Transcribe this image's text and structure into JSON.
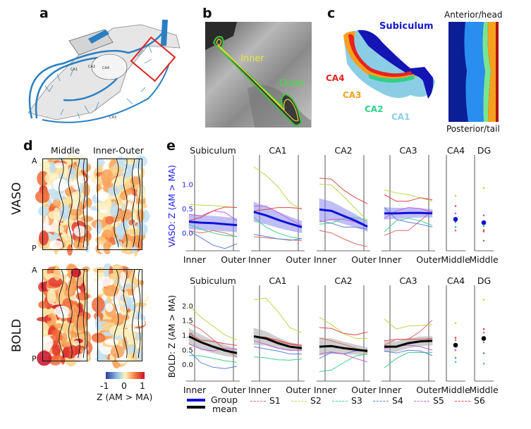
{
  "panels": {
    "a": {
      "letter": "a",
      "region_labels": [
        "CA1",
        "CA2",
        "CA3",
        "CA4"
      ]
    },
    "b": {
      "letter": "b",
      "inner_label": "Inner",
      "outer_label": "Outer"
    },
    "c": {
      "letter": "c",
      "subfield_labels": [
        {
          "text": "Subiculum",
          "color": "#1a1ac8"
        },
        {
          "text": "CA4",
          "color": "#e8221e"
        },
        {
          "text": "CA3",
          "color": "#f5a01e"
        },
        {
          "text": "CA2",
          "color": "#2fd08a"
        },
        {
          "text": "CA1",
          "color": "#8ccde6"
        }
      ],
      "flatmap_top": "Anterior/head",
      "flatmap_bottom": "Posterior/tail"
    },
    "d": {
      "letter": "d",
      "col_headers": [
        "Middle",
        "Inner-Outer"
      ],
      "row_labels": [
        "VASO",
        "BOLD"
      ],
      "axis_top": "A",
      "axis_bottom": "P",
      "colorbar": {
        "ticks": [
          "-1",
          "0",
          "1"
        ],
        "label": "Z (AM > MA)",
        "range": [
          -1,
          1
        ]
      }
    },
    "e": {
      "letter": "e",
      "legend": {
        "group_mean": "Group\nmean",
        "group_label_1": "Group",
        "group_label_2": "mean",
        "subjects": [
          {
            "name": "S1",
            "color": "#d96b6b"
          },
          {
            "name": "S2",
            "color": "#b8d64a"
          },
          {
            "name": "S3",
            "color": "#3fcf8a"
          },
          {
            "name": "S4",
            "color": "#5b7fd6"
          },
          {
            "name": "S5",
            "color": "#c25fd6"
          },
          {
            "name": "S6",
            "color": "#e0454a"
          }
        ]
      }
    }
  },
  "chart_data": [
    {
      "type": "line",
      "title": "VASO layer profiles",
      "ylabel": "VASO: Z (AM > MA)",
      "ylabel_color": "#1a1ae6",
      "mean_color": "#1010d8",
      "band_color": "#8c8cf0",
      "ylim": [
        -0.35,
        1.45
      ],
      "yticks": [
        "0.0",
        "0.5",
        "1.0"
      ],
      "ytick_values": [
        0.0,
        0.5,
        1.0
      ],
      "xlabels": [
        "Inner",
        "Outer"
      ],
      "subplots": [
        {
          "title": "Subiculum",
          "kind": "profile",
          "mean": [
            0.23,
            0.21,
            0.2,
            0.18,
            0.16
          ],
          "band": [
            0.15,
            0.14
          ],
          "subjects": {
            "S1": [
              0.05,
              0.0,
              0.05,
              0.0,
              -0.08
            ],
            "S2": [
              0.58,
              0.57,
              0.56,
              0.54,
              0.52
            ],
            "S3": [
              0.17,
              0.08,
              0.0,
              -0.05,
              -0.07
            ],
            "S4": [
              0.05,
              -0.1,
              -0.25,
              -0.32,
              -0.22
            ],
            "S5": [
              0.38,
              0.35,
              0.45,
              0.42,
              0.25
            ],
            "S6": [
              0.25,
              0.32,
              0.45,
              0.53,
              0.52
            ]
          }
        },
        {
          "title": "CA1",
          "kind": "profile",
          "mean": [
            0.43,
            0.36,
            0.27,
            0.19,
            0.12
          ],
          "band": [
            0.2,
            0.12
          ],
          "subjects": {
            "S1": [
              -0.08,
              -0.1,
              -0.12,
              -0.14,
              -0.16
            ],
            "S2": [
              1.35,
              1.18,
              0.95,
              0.62,
              0.48
            ],
            "S3": [
              0.32,
              0.12,
              0.0,
              -0.08,
              -0.12
            ],
            "S4": [
              -0.03,
              -0.07,
              -0.12,
              -0.15,
              -0.12
            ],
            "S5": [
              0.55,
              0.55,
              0.42,
              0.28,
              0.15
            ],
            "S6": [
              0.45,
              0.48,
              0.52,
              0.52,
              0.5
            ]
          }
        },
        {
          "title": "CA2",
          "kind": "profile",
          "mean": [
            0.48,
            0.45,
            0.35,
            0.25,
            0.13
          ],
          "band": [
            0.22,
            0.1
          ],
          "subjects": {
            "S1": [
              0.05,
              0.0,
              -0.12,
              -0.22,
              -0.28
            ],
            "S2": [
              1.0,
              0.98,
              0.75,
              0.5,
              0.25
            ],
            "S3": [
              0.18,
              0.2,
              0.3,
              0.32,
              0.25
            ],
            "S4": [
              0.25,
              0.2,
              0.12,
              0.12,
              0.08
            ],
            "S5": [
              0.22,
              0.28,
              0.28,
              0.22,
              0.12
            ],
            "S6": [
              1.12,
              1.1,
              0.88,
              0.72,
              0.6
            ]
          }
        },
        {
          "title": "CA3",
          "kind": "profile",
          "mean": [
            0.4,
            0.4,
            0.41,
            0.41,
            0.4
          ],
          "band": [
            0.12,
            0.08
          ],
          "subjects": {
            "S1": [
              -0.05,
              0.05,
              0.05,
              0.25,
              0.45
            ],
            "S2": [
              0.88,
              0.82,
              0.78,
              0.72,
              0.65
            ],
            "S3": [
              0.02,
              0.25,
              0.3,
              0.25,
              0.15
            ],
            "S4": [
              0.52,
              0.28,
              0.22,
              0.18,
              0.12
            ],
            "S5": [
              0.3,
              0.45,
              0.52,
              0.5,
              0.42
            ],
            "S6": [
              0.78,
              0.65,
              0.65,
              0.72,
              0.68
            ]
          }
        },
        {
          "title": "CA4",
          "kind": "point",
          "xlabel": "Middle",
          "mean": 0.28,
          "subjects": {
            "S1": 0.05,
            "S2": 0.76,
            "S3": 0.12,
            "S4": 0.22,
            "S5": 0.4,
            "S6": 0.55
          }
        },
        {
          "title": "DG",
          "kind": "point",
          "xlabel": "Middle",
          "mean": 0.21,
          "subjects": {
            "S1": 0.06,
            "S2": 0.92,
            "S3": 0.14,
            "S4": -0.16,
            "S5": 0.36,
            "S6": 0.03
          }
        }
      ]
    },
    {
      "type": "line",
      "title": "BOLD layer profiles",
      "ylabel": "BOLD: Z (AM > MA)",
      "ylabel_color": "#111111",
      "mean_color": "#000000",
      "band_color": "#a8a8a8",
      "ylim": [
        -0.55,
        2.45
      ],
      "yticks": [
        "0.0",
        "0.5",
        "1.0",
        "1.5",
        "2.0"
      ],
      "ytick_values": [
        0.0,
        0.5,
        1.0,
        1.5,
        2.0
      ],
      "xlabels": [
        "Inner",
        "Outer"
      ],
      "subplots": [
        {
          "title": "Subiculum",
          "kind": "profile",
          "mean": [
            0.95,
            0.75,
            0.6,
            0.47,
            0.38
          ],
          "band": [
            0.28,
            0.15
          ],
          "subjects": {
            "S1": [
              1.4,
              1.18,
              0.85,
              0.5,
              0.25
            ],
            "S2": [
              2.0,
              1.6,
              1.3,
              1.0,
              0.83
            ],
            "S3": [
              0.3,
              0.28,
              0.2,
              0.12,
              0.07
            ],
            "S4": [
              0.45,
              0.05,
              -0.1,
              -0.15,
              -0.07
            ],
            "S5": [
              0.7,
              0.52,
              0.45,
              0.55,
              0.5
            ],
            "S6": [
              1.05,
              0.82,
              0.78,
              0.7,
              0.64
            ]
          }
        },
        {
          "title": "CA1",
          "kind": "profile",
          "mean": [
            0.95,
            0.88,
            0.72,
            0.6,
            0.55
          ],
          "band": [
            0.28,
            0.1
          ],
          "subjects": {
            "S1": [
              0.95,
              0.9,
              0.78,
              0.68,
              0.62
            ],
            "S2": [
              2.2,
              2.25,
              1.8,
              1.25,
              1.08
            ],
            "S3": [
              0.25,
              0.22,
              0.15,
              0.14,
              0.18
            ],
            "S4": [
              0.6,
              0.52,
              0.45,
              0.35,
              0.35
            ],
            "S5": [
              0.8,
              0.68,
              0.55,
              0.48,
              0.48
            ],
            "S6": [
              0.95,
              0.92,
              0.82,
              0.7,
              0.65
            ]
          }
        },
        {
          "title": "CA2",
          "kind": "profile",
          "mean": [
            0.6,
            0.62,
            0.55,
            0.5,
            0.45
          ],
          "band": [
            0.3,
            0.12
          ],
          "subjects": {
            "S1": [
              0.9,
              0.8,
              0.68,
              0.55,
              0.4
            ],
            "S2": [
              1.6,
              1.35,
              1.05,
              0.88,
              0.88
            ],
            "S3": [
              -0.25,
              -0.2,
              0.05,
              0.28,
              0.35
            ],
            "S4": [
              0.2,
              0.4,
              0.35,
              0.45,
              0.5
            ],
            "S5": [
              0.35,
              0.42,
              0.35,
              0.2,
              0.08
            ],
            "S6": [
              1.25,
              1.22,
              1.05,
              1.0,
              1.1
            ]
          }
        },
        {
          "title": "CA3",
          "kind": "profile",
          "mean": [
            0.6,
            0.6,
            0.72,
            0.78,
            0.8
          ],
          "band": [
            0.18,
            0.15
          ],
          "subjects": {
            "S1": [
              0.65,
              0.85,
              0.85,
              1.12,
              1.5
            ],
            "S2": [
              1.55,
              1.2,
              1.3,
              1.32,
              1.35
            ],
            "S3": [
              -0.12,
              0.2,
              0.4,
              0.4,
              0.4
            ],
            "S4": [
              0.45,
              0.38,
              0.48,
              0.45,
              0.3
            ],
            "S5": [
              0.55,
              0.62,
              0.65,
              0.6,
              0.48
            ],
            "S6": [
              0.8,
              0.85,
              0.85,
              0.85,
              0.88
            ]
          }
        },
        {
          "title": "CA4",
          "kind": "point",
          "xlabel": "Middle",
          "mean": 0.65,
          "subjects": {
            "S1": 0.82,
            "S2": 1.4,
            "S3": 0.08,
            "S4": 0.22,
            "S5": 0.48,
            "S6": 0.9
          }
        },
        {
          "title": "DG",
          "kind": "point",
          "xlabel": "Middle",
          "mean": 0.88,
          "subjects": {
            "S1": 1.08,
            "S2": 2.2,
            "S3": 0.02,
            "S4": 0.38,
            "S5": 0.75,
            "S6": 1.2
          }
        }
      ]
    }
  ]
}
